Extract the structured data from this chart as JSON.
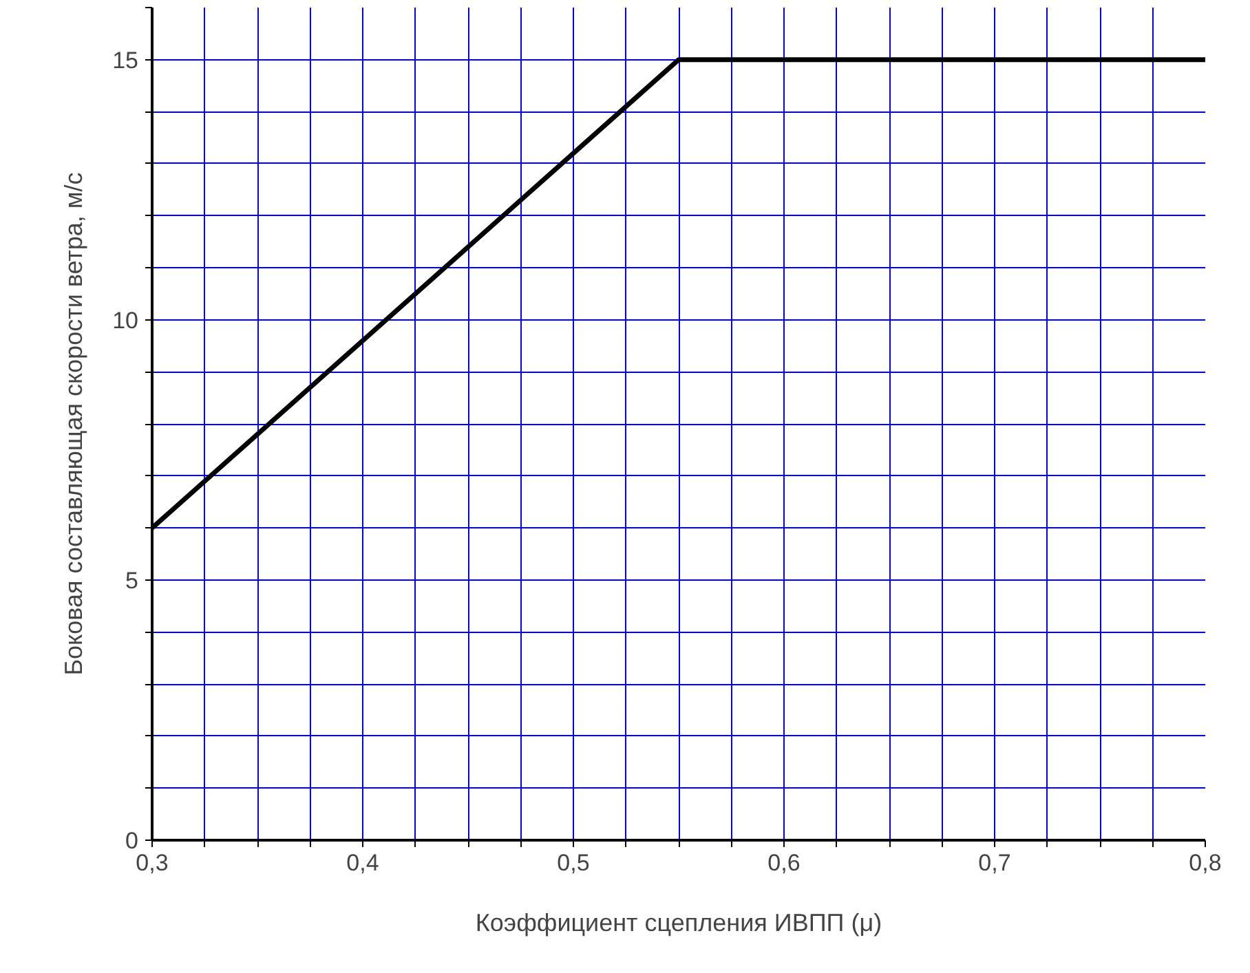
{
  "chart_data": {
    "type": "line",
    "xlabel": "Коэффициент сцепления ИВПП (μ)",
    "ylabel": "Боковая составляющая скорости ветра, м/с",
    "x": [
      0.3,
      0.55,
      0.8
    ],
    "series": [
      {
        "color": "#000000",
        "values": [
          6,
          15,
          15
        ]
      }
    ],
    "xlim": [
      0.3,
      0.8
    ],
    "ylim": [
      0,
      16
    ],
    "xticks": [
      {
        "value": 0.3,
        "label": "0,3"
      },
      {
        "value": 0.325,
        "label": null
      },
      {
        "value": 0.35,
        "label": null
      },
      {
        "value": 0.375,
        "label": null
      },
      {
        "value": 0.4,
        "label": "0,4"
      },
      {
        "value": 0.425,
        "label": null
      },
      {
        "value": 0.45,
        "label": null
      },
      {
        "value": 0.475,
        "label": null
      },
      {
        "value": 0.5,
        "label": "0,5"
      },
      {
        "value": 0.525,
        "label": null
      },
      {
        "value": 0.55,
        "label": null
      },
      {
        "value": 0.575,
        "label": null
      },
      {
        "value": 0.6,
        "label": "0,6"
      },
      {
        "value": 0.625,
        "label": null
      },
      {
        "value": 0.65,
        "label": null
      },
      {
        "value": 0.675,
        "label": null
      },
      {
        "value": 0.7,
        "label": "0,7"
      },
      {
        "value": 0.725,
        "label": null
      },
      {
        "value": 0.75,
        "label": null
      },
      {
        "value": 0.775,
        "label": null
      },
      {
        "value": 0.8,
        "label": "0,8"
      }
    ],
    "yticks": [
      0,
      {
        "value": 1,
        "label": null
      },
      {
        "value": 2,
        "label": null
      },
      {
        "value": 3,
        "label": null
      },
      {
        "value": 4,
        "label": null
      },
      5,
      {
        "value": 6,
        "label": null
      },
      {
        "value": 7,
        "label": null
      },
      {
        "value": 8,
        "label": null
      },
      {
        "value": 9,
        "label": null
      },
      10,
      {
        "value": 11,
        "label": null
      },
      {
        "value": 12,
        "label": null
      },
      {
        "value": 13,
        "label": null
      },
      {
        "value": 14,
        "label": null
      },
      15,
      {
        "value": 16,
        "label": null
      }
    ],
    "grid": true,
    "line_style": "solid"
  }
}
